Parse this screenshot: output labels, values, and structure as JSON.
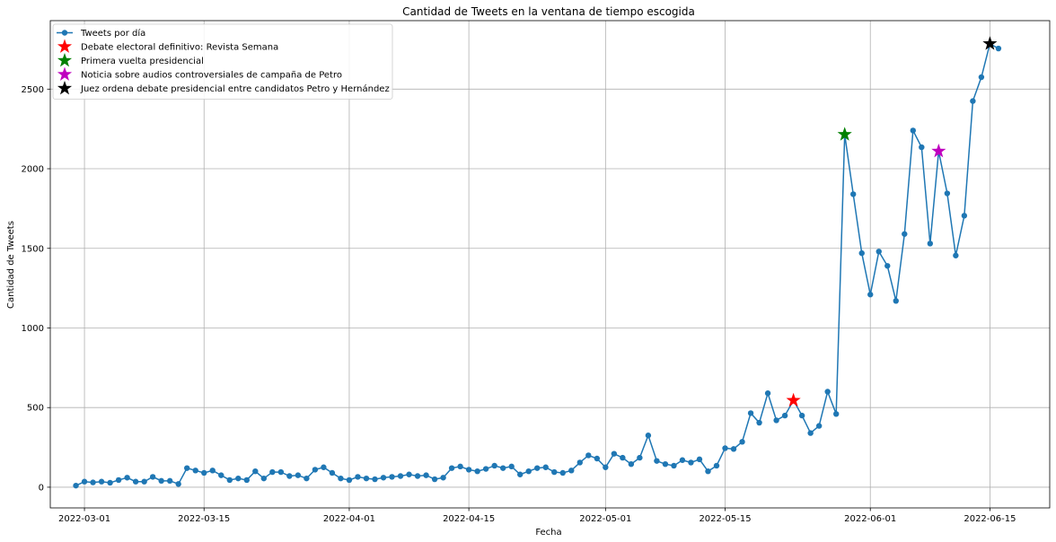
{
  "chart_data": {
    "type": "line",
    "title": "Cantidad de Tweets en la ventana de tiempo escogida",
    "xlabel": "Fecha",
    "ylabel": "Cantidad de Tweets",
    "xlim": [
      "2022-02-25",
      "2022-06-22"
    ],
    "ylim": [
      -130,
      2930
    ],
    "grid": true,
    "legend_position": "top-left",
    "x_ticks": [
      "2022-03-01",
      "2022-03-15",
      "2022-04-01",
      "2022-04-15",
      "2022-05-01",
      "2022-05-15",
      "2022-06-01",
      "2022-06-15"
    ],
    "y_ticks": [
      0,
      500,
      1000,
      1500,
      2000,
      2500
    ],
    "series": [
      {
        "name": "Tweets por día",
        "color": "#1f77b4",
        "marker": "circle",
        "start_date": "2022-02-28",
        "values": [
          10,
          35,
          30,
          35,
          28,
          45,
          60,
          35,
          35,
          65,
          40,
          40,
          20,
          120,
          105,
          90,
          105,
          75,
          45,
          55,
          45,
          100,
          55,
          95,
          95,
          70,
          75,
          55,
          110,
          125,
          90,
          55,
          45,
          65,
          55,
          50,
          60,
          65,
          70,
          80,
          70,
          75,
          50,
          60,
          120,
          130,
          110,
          100,
          115,
          135,
          120,
          130,
          80,
          100,
          120,
          125,
          95,
          90,
          105,
          155,
          200,
          180,
          125,
          210,
          185,
          145,
          185,
          325,
          165,
          145,
          135,
          170,
          155,
          175,
          100,
          135,
          245,
          240,
          285,
          465,
          405,
          590,
          420,
          450,
          545,
          450,
          340,
          385,
          600,
          460,
          2215,
          1840,
          1470,
          1210,
          1480,
          1390,
          1170,
          1590,
          2240,
          2135,
          1530,
          2110,
          1845,
          1455,
          1705,
          2425,
          2575,
          2785,
          2755
        ]
      }
    ],
    "event_markers": [
      {
        "label": "Debate electoral definitivo: Revista Semana",
        "date": "2022-05-23",
        "value": 545,
        "color": "#ff0000"
      },
      {
        "label": "Primera vuelta presidencial",
        "date": "2022-05-29",
        "value": 2215,
        "color": "#008000"
      },
      {
        "label": "Noticia sobre audios controversiales de campaña de Petro",
        "date": "2022-06-09",
        "value": 2110,
        "color": "#bf00bf"
      },
      {
        "label": "Juez ordena debate presidencial entre candidatos Petro y Hernández",
        "date": "2022-06-15",
        "value": 2785,
        "color": "#000000"
      }
    ]
  }
}
